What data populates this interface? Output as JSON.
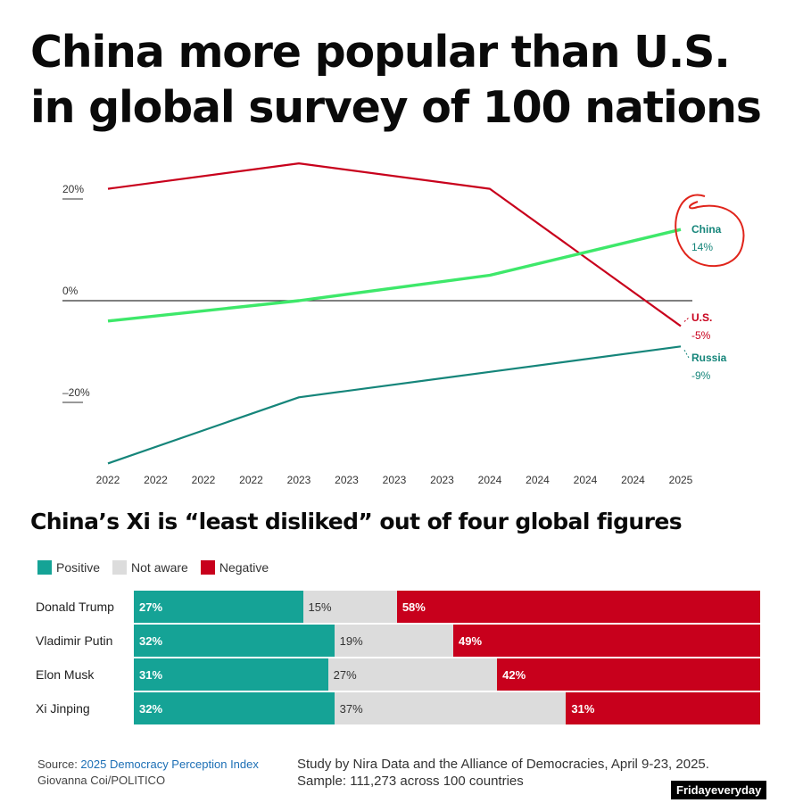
{
  "title_line1": "China more popular than U.S.",
  "title_line2": "in global survey of 100 nations",
  "chart_data": [
    {
      "type": "line",
      "title": "China more popular than U.S. in global survey of 100 nations",
      "x": [
        "2022",
        "2022",
        "2022",
        "2022",
        "2023",
        "2023",
        "2023",
        "2023",
        "2024",
        "2024",
        "2024",
        "2024",
        "2025"
      ],
      "ylim": [
        -32,
        28
      ],
      "yticks": [
        20,
        0,
        -20
      ],
      "ytick_labels": [
        "20%",
        "0%",
        "–20%"
      ],
      "series": [
        {
          "name": "U.S.",
          "label": "U.S.",
          "end_label": "-5%",
          "color": "#c8001c",
          "points": [
            [
              0,
              22
            ],
            [
              4,
              27
            ],
            [
              8,
              22
            ],
            [
              12,
              -5
            ]
          ]
        },
        {
          "name": "China",
          "label": "China",
          "end_label": "14%",
          "color": "#3ee86a",
          "points": [
            [
              0,
              -4
            ],
            [
              4,
              0
            ],
            [
              8,
              5
            ],
            [
              12,
              14
            ]
          ]
        },
        {
          "name": "Russia",
          "label": "Russia",
          "end_label": "-9%",
          "color": "#15857a",
          "points": [
            [
              0,
              -32
            ],
            [
              4,
              -19
            ],
            [
              8,
              -14
            ],
            [
              12,
              -9
            ]
          ]
        }
      ]
    },
    {
      "type": "bar",
      "title": "China’s Xi is “least disliked” out of four global figures",
      "stacked": true,
      "orientation": "horizontal",
      "categories": [
        "Donald Trump",
        "Vladimir Putin",
        "Elon Musk",
        "Xi Jinping"
      ],
      "series": [
        {
          "name": "Positive",
          "color": "#15a396",
          "values": [
            27,
            32,
            31,
            32
          ]
        },
        {
          "name": "Not aware",
          "color": "#dcdcdc",
          "values": [
            15,
            19,
            27,
            37
          ]
        },
        {
          "name": "Negative",
          "color": "#c8001c",
          "values": [
            58,
            49,
            42,
            31
          ]
        }
      ]
    }
  ],
  "source_prefix": "Source: ",
  "source_link": "2025 Democracy Perception Index",
  "credit": "Giovanna Coi/POLITICO",
  "study_line1": "Study by Nira Data and the Alliance of Democracies, April 9-23, 2025.",
  "study_line2": "Sample: 111,273 across 100 countries",
  "watermark": "Fridayeveryday"
}
